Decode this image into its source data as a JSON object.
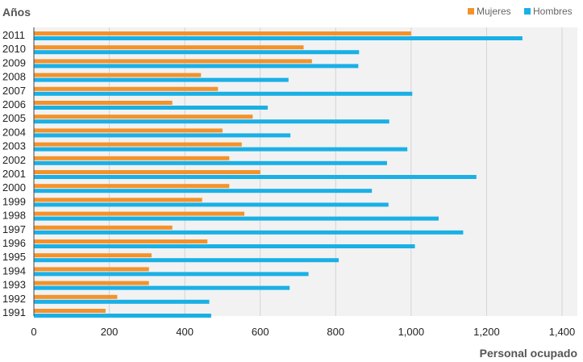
{
  "chart_data": {
    "type": "bar",
    "orientation": "horizontal",
    "ylabel": "Años",
    "xlabel": "Personal ocupado",
    "categories": [
      "2011",
      "2010",
      "2009",
      "2008",
      "2007",
      "2006",
      "2005",
      "2004",
      "2003",
      "2002",
      "2001",
      "2000",
      "1999",
      "1998",
      "1997",
      "1996",
      "1995",
      "1994",
      "1993",
      "1992",
      "1991"
    ],
    "series": [
      {
        "name": "Mujeres",
        "color": "#f4922a",
        "values": [
          1000,
          715,
          737,
          443,
          488,
          367,
          580,
          500,
          551,
          518,
          600,
          518,
          446,
          558,
          367,
          460,
          312,
          305,
          305,
          221,
          190
        ]
      },
      {
        "name": "Hombres",
        "color": "#1ab0e6",
        "values": [
          1295,
          862,
          860,
          675,
          1003,
          620,
          942,
          680,
          990,
          936,
          1173,
          896,
          940,
          1073,
          1138,
          1010,
          808,
          728,
          678,
          465,
          470
        ]
      }
    ],
    "xticks": [
      0,
      200,
      400,
      600,
      800,
      1000,
      1200,
      1400
    ],
    "xtick_labels": [
      "0",
      "200",
      "400",
      "600",
      "800",
      "1,000",
      "1,200",
      "1,400"
    ],
    "xlim": [
      0,
      1410
    ],
    "grid": true,
    "legend_position": "top-right"
  }
}
